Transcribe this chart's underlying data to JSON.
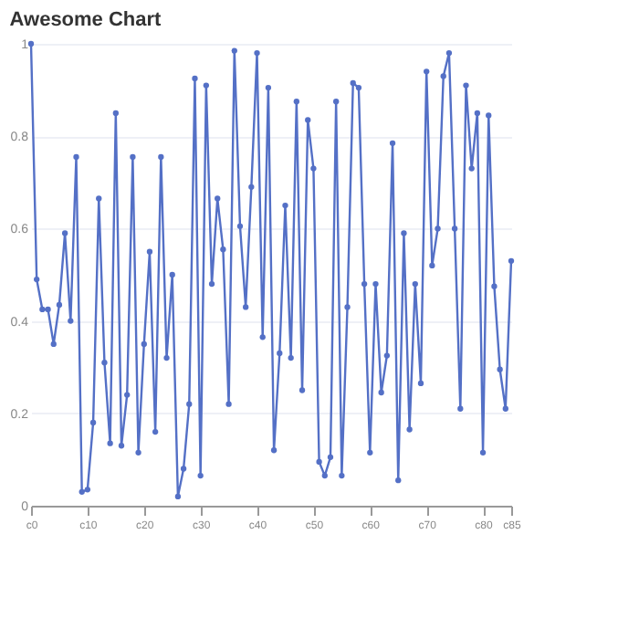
{
  "chart_data": {
    "type": "line",
    "title": "Awesome Chart",
    "categories": [
      "c0",
      null,
      null,
      null,
      null,
      null,
      null,
      null,
      null,
      null,
      "c10",
      null,
      null,
      null,
      null,
      null,
      null,
      null,
      null,
      null,
      "c20",
      null,
      null,
      null,
      null,
      null,
      null,
      null,
      null,
      null,
      "c30",
      null,
      null,
      null,
      null,
      null,
      null,
      null,
      null,
      null,
      "c40",
      null,
      null,
      null,
      null,
      null,
      null,
      null,
      null,
      null,
      "c50",
      null,
      null,
      null,
      null,
      null,
      null,
      null,
      null,
      null,
      "c60",
      null,
      null,
      null,
      null,
      null,
      null,
      null,
      null,
      null,
      "c70",
      null,
      null,
      null,
      null,
      null,
      null,
      null,
      null,
      null,
      "c80",
      null,
      null,
      null,
      null,
      "c85"
    ],
    "series": [
      {
        "color": "#5470c6",
        "values": [
          1.0,
          0.49,
          0.425,
          0.425,
          0.35,
          0.435,
          0.59,
          0.4,
          0.755,
          0.03,
          0.035,
          0.18,
          0.665,
          0.31,
          0.135,
          0.85,
          0.13,
          0.24,
          0.755,
          0.115,
          0.35,
          0.55,
          0.16,
          0.755,
          0.32,
          0.5,
          0.02,
          0.08,
          0.22,
          0.925,
          0.065,
          0.91,
          0.48,
          0.665,
          0.555,
          0.22,
          0.985,
          0.605,
          0.43,
          0.69,
          0.98,
          0.365,
          0.905,
          0.12,
          0.33,
          0.65,
          0.32,
          0.875,
          0.25,
          0.835,
          0.73,
          0.095,
          0.065,
          0.105,
          0.875,
          0.065,
          0.43,
          0.915,
          0.905,
          0.48,
          0.115,
          0.48,
          0.245,
          0.325,
          0.785,
          0.055,
          0.59,
          0.165,
          0.48,
          0.265,
          0.94,
          0.52,
          0.6,
          0.93,
          0.98,
          0.6,
          0.21,
          0.91,
          0.73,
          0.85,
          0.115,
          0.845,
          0.475,
          0.295,
          0.21,
          0.53
        ]
      }
    ],
    "ylim": [
      0,
      1
    ],
    "yticks": [
      0,
      0.2,
      0.4,
      0.6,
      0.8,
      1
    ],
    "grid": "y",
    "marker": "circle",
    "line_style": "solid",
    "legend": false
  }
}
